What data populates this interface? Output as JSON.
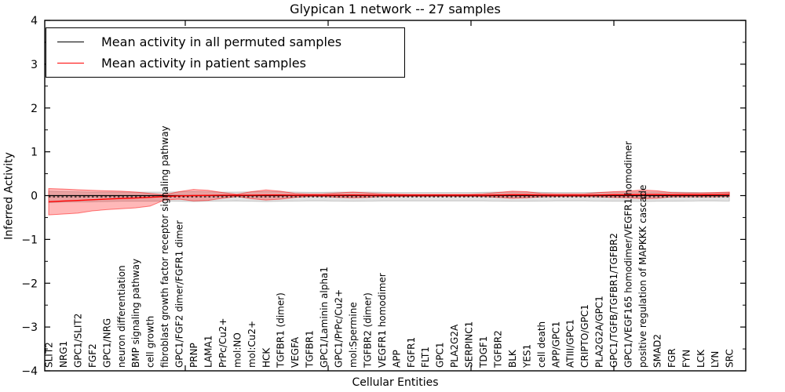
{
  "figure": {
    "title": "Glypican 1 network -- 27 samples",
    "xlabel": "Cellular Entities",
    "ylabel": "Inferred Activity"
  },
  "legend": {
    "items": [
      {
        "label": "Mean activity in all permuted samples",
        "color": "#000000"
      },
      {
        "label": "Mean activity in patient samples",
        "color": "#ff0000"
      }
    ]
  },
  "chart_data": {
    "type": "line",
    "title": "Glypican 1 network -- 27 samples",
    "xlabel": "Cellular Entities",
    "ylabel": "Inferred Activity",
    "ylim": [
      -4,
      4
    ],
    "yticks": [
      -4,
      -3,
      -2,
      -1,
      0,
      1,
      2,
      3,
      4
    ],
    "grid": false,
    "legend_position": "upper left",
    "categories": [
      "SLIT2",
      "NRG1",
      "GPC1/SLIT2",
      "FGF2",
      "GPC1/NRG",
      "neuron differentiation",
      "BMP signaling pathway",
      "cell growth",
      "fibroblast growth factor receptor signaling pathway",
      "GPC1/FGF2 dimer/FGFR1 dimer",
      "PRNP",
      "LAMA1",
      "PrPc/Cu2+",
      "mol:NO",
      "mol:Cu2+",
      "HCK",
      "TGFBR1 (dimer)",
      "VEGFA",
      "TGFBR1",
      "GPC1/Laminin alpha1",
      "GPC1/PrPc/Cu2+",
      "mol:Spermine",
      "TGFBR2 (dimer)",
      "VEGFR1 homodimer",
      "APP",
      "FGFR1",
      "FLT1",
      "GPC1",
      "PLA2G2A",
      "SERPINC1",
      "TDGF1",
      "TGFBR2",
      "BLK",
      "YES1",
      "cell death",
      "APP/GPC1",
      "ATIII/GPC1",
      "CRIPTO/GPC1",
      "PLA2G2A/GPC1",
      "GPC1/TGFB/TGFBR1/TGFBR2",
      "GPC1/VEGF165 homodimer/VEGFR1 homodimer",
      "positive regulation of MAPKKK cascade",
      "SMAD2",
      "FGR",
      "FYN",
      "LCK",
      "LYN",
      "SRC"
    ],
    "series": [
      {
        "name": "Mean activity in all permuted samples",
        "color": "#000000",
        "values": [
          0,
          0,
          0,
          0,
          0,
          0,
          0,
          0,
          0,
          0,
          0,
          0,
          0,
          0,
          0,
          0,
          0,
          0,
          0,
          0,
          0,
          0,
          0,
          0,
          0,
          0,
          0,
          0,
          0,
          0,
          0,
          0,
          0,
          0,
          0,
          0,
          0,
          0,
          0,
          0,
          0,
          0,
          0,
          0,
          0,
          0,
          0,
          0
        ],
        "band_upper": [
          0.1,
          0.09,
          0.085,
          0.08,
          0.08,
          0.08,
          0.08,
          0.08,
          0.08,
          0.085,
          0.09,
          0.085,
          0.08,
          0.08,
          0.085,
          0.09,
          0.085,
          0.08,
          0.075,
          0.075,
          0.08,
          0.08,
          0.08,
          0.075,
          0.07,
          0.07,
          0.07,
          0.07,
          0.07,
          0.07,
          0.075,
          0.08,
          0.08,
          0.08,
          0.075,
          0.07,
          0.07,
          0.07,
          0.075,
          0.08,
          0.08,
          0.085,
          0.08,
          0.08,
          0.075,
          0.07,
          0.07,
          0.075
        ],
        "band_lower": [
          -0.16,
          -0.15,
          -0.145,
          -0.14,
          -0.135,
          -0.13,
          -0.13,
          -0.13,
          -0.125,
          -0.13,
          -0.135,
          -0.13,
          -0.125,
          -0.12,
          -0.13,
          -0.135,
          -0.13,
          -0.125,
          -0.12,
          -0.12,
          -0.125,
          -0.13,
          -0.125,
          -0.12,
          -0.12,
          -0.12,
          -0.12,
          -0.12,
          -0.12,
          -0.12,
          -0.12,
          -0.125,
          -0.13,
          -0.13,
          -0.125,
          -0.12,
          -0.12,
          -0.12,
          -0.125,
          -0.13,
          -0.13,
          -0.135,
          -0.13,
          -0.13,
          -0.125,
          -0.12,
          -0.12,
          -0.125
        ],
        "band_color": "rgba(125,125,125,0.22)",
        "band_edge": "rgba(110,110,110,0.40)"
      },
      {
        "name": "Mean activity in patient samples",
        "color": "#ff0000",
        "values": [
          -0.14,
          -0.125,
          -0.11,
          -0.095,
          -0.08,
          -0.065,
          -0.055,
          -0.04,
          -0.02,
          -0.005,
          0.0,
          0.005,
          0.01,
          0.01,
          0.01,
          0.015,
          0.015,
          0.01,
          0.01,
          0.01,
          0.012,
          0.015,
          0.012,
          0.01,
          0.01,
          0.01,
          0.01,
          0.01,
          0.01,
          0.01,
          0.01,
          0.015,
          0.02,
          0.02,
          0.015,
          0.01,
          0.01,
          0.01,
          0.015,
          0.02,
          0.02,
          0.025,
          0.025,
          0.02,
          0.02,
          0.02,
          0.025,
          0.03
        ],
        "band_upper": [
          0.16,
          0.15,
          0.135,
          0.12,
          0.11,
          0.1,
          0.08,
          0.05,
          0.02,
          0.09,
          0.14,
          0.12,
          0.07,
          0.03,
          0.09,
          0.13,
          0.1,
          0.05,
          0.035,
          0.04,
          0.06,
          0.08,
          0.06,
          0.04,
          0.035,
          0.03,
          0.03,
          0.03,
          0.03,
          0.03,
          0.04,
          0.07,
          0.1,
          0.09,
          0.05,
          0.04,
          0.04,
          0.04,
          0.07,
          0.09,
          0.1,
          0.13,
          0.11,
          0.07,
          0.06,
          0.06,
          0.07,
          0.08
        ],
        "band_lower": [
          -0.44,
          -0.42,
          -0.4,
          -0.35,
          -0.32,
          -0.3,
          -0.28,
          -0.24,
          -0.1,
          -0.08,
          -0.12,
          -0.11,
          -0.06,
          -0.02,
          -0.07,
          -0.1,
          -0.08,
          -0.04,
          -0.02,
          -0.02,
          -0.04,
          -0.05,
          -0.04,
          -0.02,
          -0.02,
          -0.015,
          -0.015,
          -0.015,
          -0.015,
          -0.015,
          -0.02,
          -0.04,
          -0.06,
          -0.05,
          -0.03,
          -0.02,
          -0.02,
          -0.02,
          -0.03,
          -0.04,
          -0.05,
          -0.07,
          -0.06,
          -0.03,
          -0.03,
          -0.03,
          -0.03,
          -0.02
        ],
        "band_color": "rgba(255,0,0,0.28)",
        "band_edge": "rgba(255,0,0,0.50)"
      }
    ],
    "zero_reference_line": {
      "style": "dashed",
      "color": "#000000",
      "y": 0
    }
  }
}
